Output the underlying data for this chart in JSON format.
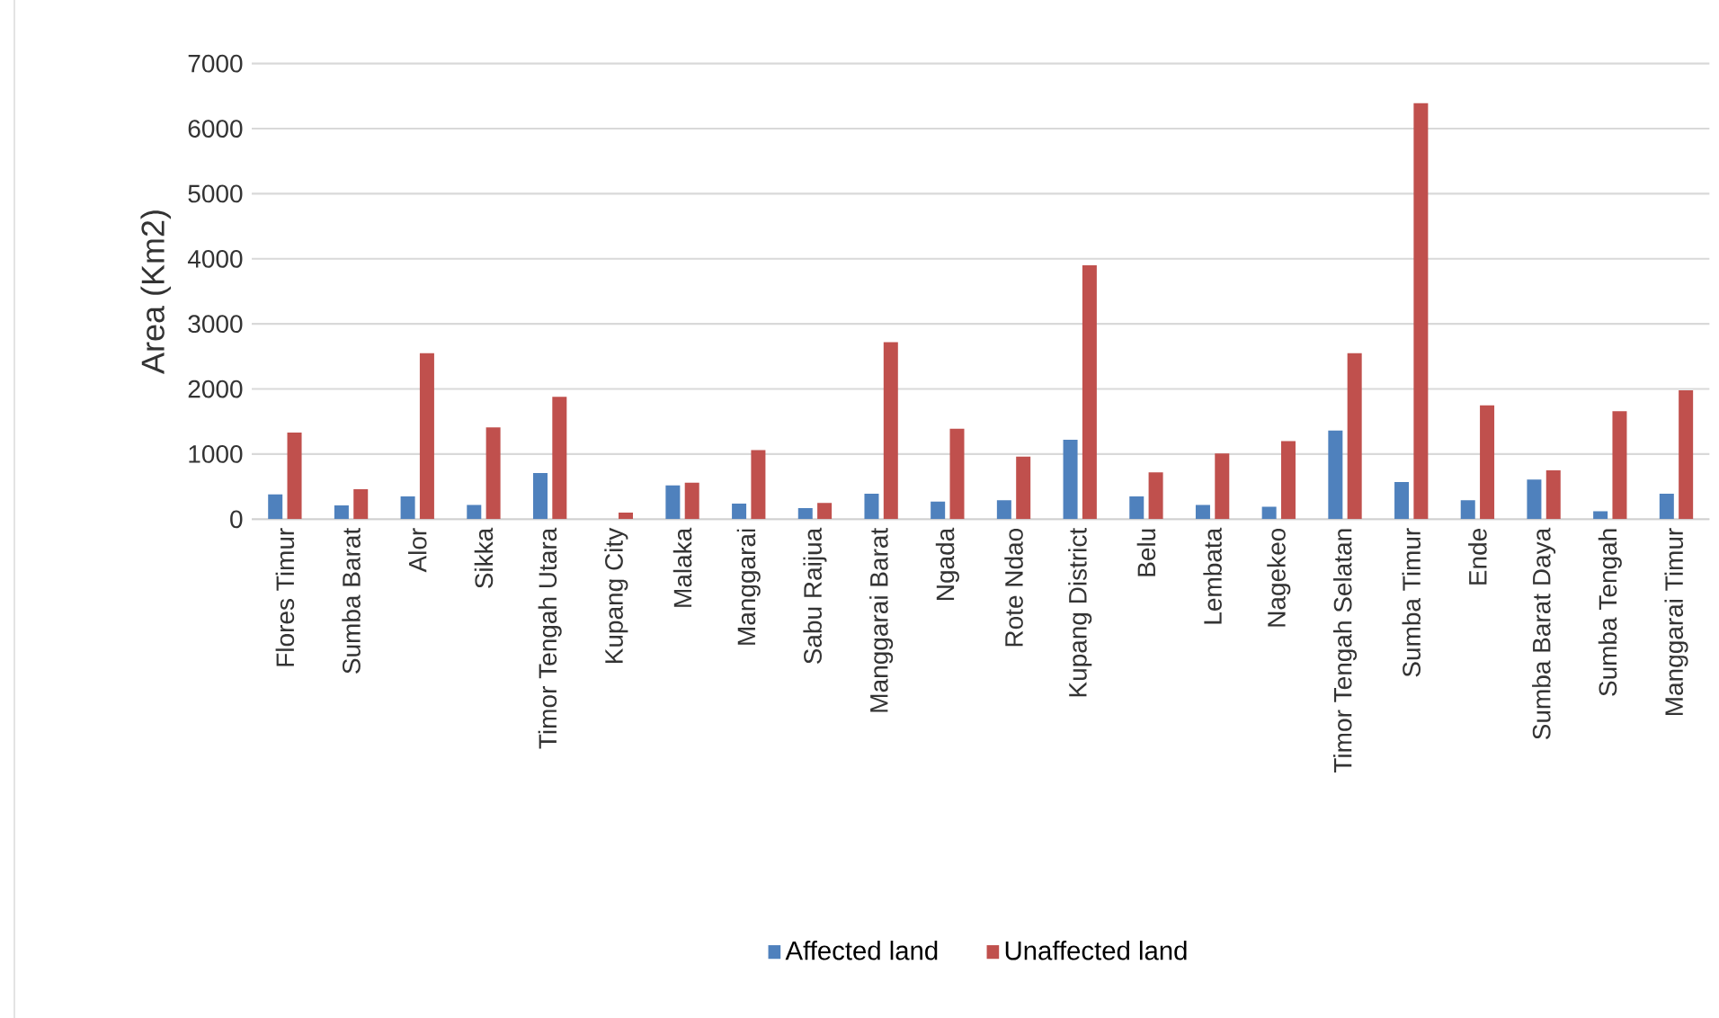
{
  "chart_data": {
    "type": "bar",
    "ylabel": "Area (Km2)",
    "categories": [
      "Flores Timur",
      "Sumba Barat",
      "Alor",
      "Sikka",
      "Timor Tengah Utara",
      "Kupang City",
      "Malaka",
      "Manggarai",
      "Sabu Raijua",
      "Manggarai Barat",
      "Ngada",
      "Rote Ndao",
      "Kupang District",
      "Belu",
      "Lembata",
      "Nagekeo",
      "Timor Tengah Selatan",
      "Sumba Timur",
      "Ende",
      "Sumba Barat Daya",
      "Sumba Tengah",
      "Manggarai Timur"
    ],
    "series": [
      {
        "name": "Affected land",
        "color": "#4f81bd",
        "values": [
          380,
          210,
          350,
          220,
          710,
          0,
          520,
          240,
          170,
          390,
          270,
          290,
          1220,
          350,
          220,
          190,
          1360,
          570,
          290,
          610,
          120,
          390
        ]
      },
      {
        "name": "Unaffected land",
        "color": "#c0504d",
        "values": [
          1330,
          460,
          2550,
          1410,
          1880,
          100,
          560,
          1060,
          250,
          2720,
          1390,
          960,
          3900,
          720,
          1010,
          1200,
          2550,
          6390,
          1750,
          750,
          1660,
          1980
        ]
      }
    ],
    "ylim": [
      0,
      7000
    ],
    "yticks": [
      0,
      1000,
      2000,
      3000,
      4000,
      5000,
      6000,
      7000
    ],
    "grid": "y",
    "legend": "bottom"
  }
}
